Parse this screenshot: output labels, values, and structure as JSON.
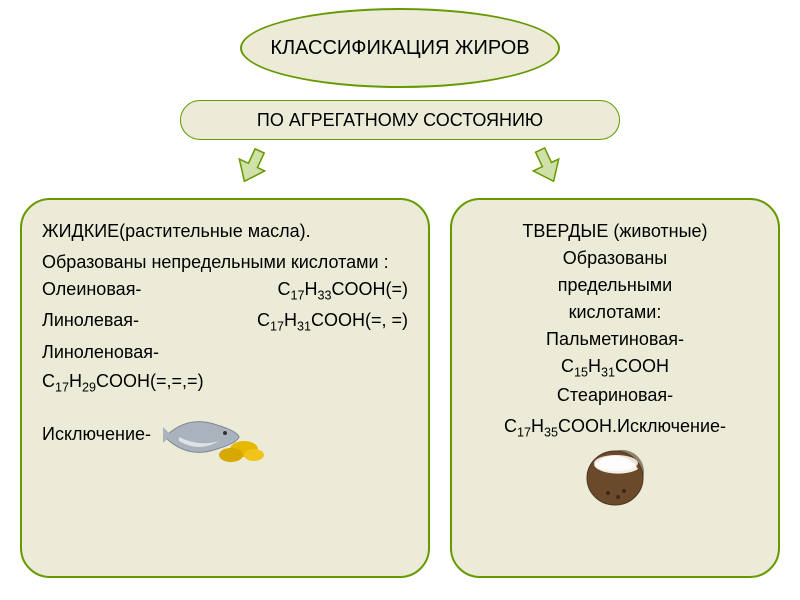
{
  "colors": {
    "box_bg": "#ebebd7",
    "box_border": "#669900",
    "page_bg": "#ffffff",
    "text": "#000000",
    "arrow_fill": "#cfe0a8",
    "arrow_stroke": "#669900",
    "fish_body": "#a9b2bd",
    "fish_belly": "#dfe3e8",
    "capsule_fill": "#e6b800",
    "coconut_outer": "#6b4a2b",
    "coconut_inner": "#f3f0e6"
  },
  "title": "КЛАССИФИКАЦИЯ ЖИРОВ",
  "subtitle": "ПО АГРЕГАТНОМУ СОСТОЯНИЮ",
  "left": {
    "heading": "ЖИДКИЕ(растительные масла).",
    "intro": "Образованы непредельными кислотами :",
    "acids": [
      {
        "name": "Олеиновая-",
        "formula_html": "C<sub>17</sub>H<sub>33</sub>COOH(=)"
      },
      {
        "name": "Линолевая-",
        "formula_html": "C<sub>17</sub>H<sub>31</sub>COOH(=, =)"
      },
      {
        "name": "Линоленовая-",
        "formula_html": "C<sub>17</sub>H<sub>29</sub>COOH(=,=,=)"
      }
    ],
    "exception_label": "Исключение-",
    "exception_icon": "fish-capsules-icon"
  },
  "right": {
    "heading": "ТВЕРДЫЕ (животные)",
    "intro1": "Образованы",
    "intro2": "предельными",
    "intro3": "кислотами:",
    "acids": [
      {
        "name": "Пальметиновая-",
        "formula_html": "C<sub>15</sub>H<sub>31</sub>COOH"
      },
      {
        "name": "Стеариновая-",
        "formula_html": "C<sub>17</sub>H<sub>35</sub>COOH."
      }
    ],
    "exception_label": "Исключение-",
    "exception_icon": "coconut-icon"
  },
  "typography": {
    "title_fontsize": 20,
    "subtitle_fontsize": 18,
    "body_fontsize": 18
  }
}
